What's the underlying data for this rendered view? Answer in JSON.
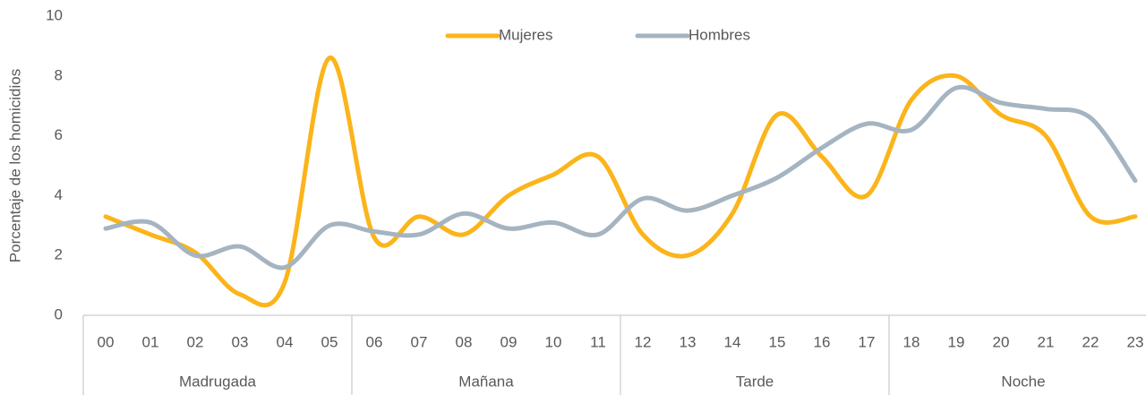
{
  "chart_data": {
    "type": "line",
    "y_label": "Porcentaje de los homicidios",
    "categories": [
      "00",
      "01",
      "02",
      "03",
      "04",
      "05",
      "06",
      "07",
      "08",
      "09",
      "10",
      "11",
      "12",
      "13",
      "14",
      "15",
      "16",
      "17",
      "18",
      "19",
      "20",
      "21",
      "22",
      "23"
    ],
    "groups": [
      "Madrugada",
      "Mañana",
      "Tarde",
      "Noche"
    ],
    "series": [
      {
        "name": "Mujeres",
        "color": "#fbb41a",
        "values": [
          3.3,
          2.7,
          2.1,
          0.7,
          1.1,
          8.6,
          2.6,
          3.3,
          2.7,
          4.0,
          4.7,
          5.3,
          2.7,
          2.0,
          3.4,
          6.7,
          5.3,
          4.0,
          7.2,
          8.0,
          6.7,
          6.0,
          3.3,
          3.3
        ]
      },
      {
        "name": "Hombres",
        "color": "#a5b4c1",
        "values": [
          2.9,
          3.1,
          2.0,
          2.3,
          1.6,
          3.0,
          2.8,
          2.7,
          3.4,
          2.9,
          3.1,
          2.7,
          3.9,
          3.5,
          4.0,
          4.6,
          5.6,
          6.4,
          6.2,
          7.6,
          7.1,
          6.9,
          6.6,
          4.5
        ]
      }
    ],
    "ylim": [
      0,
      10
    ],
    "yticks": [
      0,
      2,
      4,
      6,
      8,
      10
    ],
    "grid": false,
    "legend": "top",
    "smooth": true
  }
}
